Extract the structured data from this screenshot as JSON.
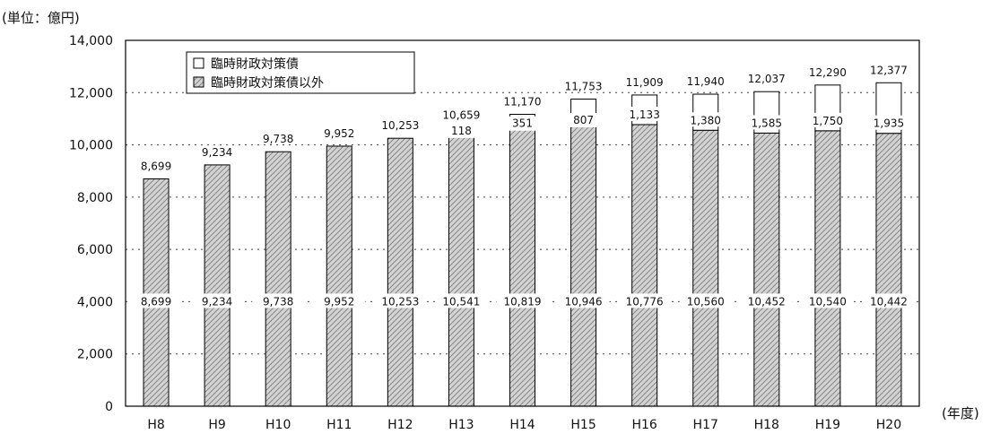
{
  "chart_data": {
    "type": "bar",
    "stacked": true,
    "unit_label": "(単位：億円)",
    "x_unit_label": "(年度)",
    "categories": [
      "H8",
      "H9",
      "H10",
      "H11",
      "H12",
      "H13",
      "H14",
      "H15",
      "H16",
      "H17",
      "H18",
      "H19",
      "H20"
    ],
    "series": [
      {
        "name": "臨時財政対策債以外",
        "values": [
          8699,
          9234,
          9738,
          9952,
          10253,
          10541,
          10819,
          10946,
          10776,
          10560,
          10452,
          10540,
          10442
        ],
        "labels": [
          "8,699",
          "9,234",
          "9,738",
          "9,952",
          "10,253",
          "10,541",
          "10,819",
          "10,946",
          "10,776",
          "10,560",
          "10,452",
          "10,540",
          "10,442"
        ],
        "color": "#c8c8c8",
        "pattern": "wavy-hatch"
      },
      {
        "name": "臨時財政対策債",
        "values": [
          null,
          null,
          null,
          null,
          null,
          118,
          351,
          807,
          1133,
          1380,
          1585,
          1750,
          1935
        ],
        "labels": [
          "",
          "",
          "",
          "",
          "",
          "118",
          "351",
          "807",
          "1,133",
          "1,380",
          "1,585",
          "1,750",
          "1,935"
        ],
        "color": "#ffffff",
        "pattern": "none"
      }
    ],
    "totals": [
      8699,
      9234,
      9738,
      9952,
      10253,
      10659,
      11170,
      11753,
      11909,
      11940,
      12037,
      12290,
      12377
    ],
    "total_labels": [
      "8,699",
      "9,234",
      "9,738",
      "9,952",
      "10,253",
      "10,659",
      "11,170",
      "11,753",
      "11,909",
      "11,940",
      "12,037",
      "12,290",
      "12,377"
    ],
    "ylim": [
      0,
      14000
    ],
    "yticks": [
      0,
      2000,
      4000,
      6000,
      8000,
      10000,
      12000,
      14000
    ],
    "ytick_labels": [
      "0",
      "2,000",
      "4,000",
      "6,000",
      "8,000",
      "10,000",
      "12,000",
      "14,000"
    ],
    "grid": "horizontal-dotted",
    "legend_position": "top-left",
    "legend": [
      {
        "label": "臨時財政対策債",
        "series": 1
      },
      {
        "label": "臨時財政対策債以外",
        "series": 0
      }
    ]
  }
}
